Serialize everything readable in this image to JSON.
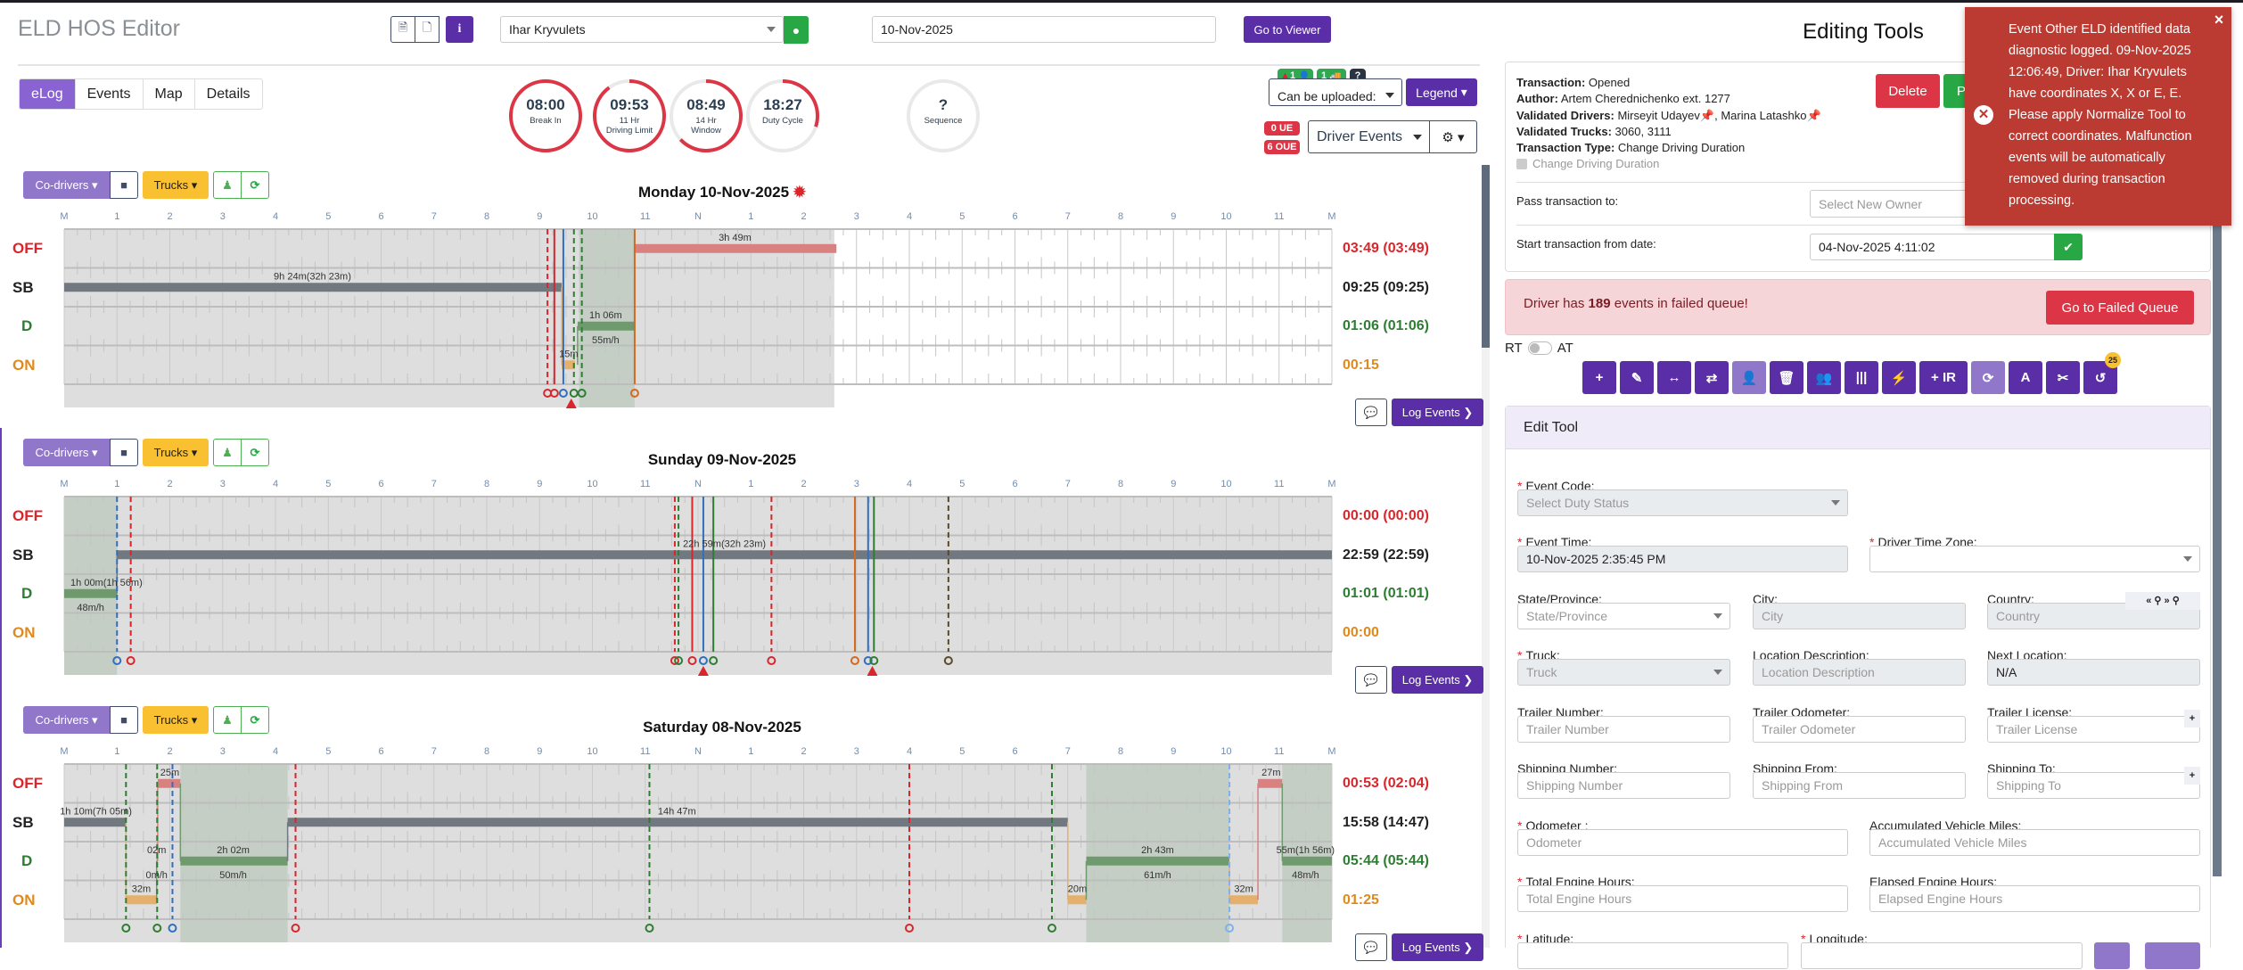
{
  "header": {
    "title": "ELD HOS Editor",
    "driver": "Ihar Kryvulets",
    "date": "10-Nov-2025",
    "go_to_viewer": "Go to Viewer",
    "info": "i"
  },
  "tabs": [
    "eLog",
    "Events",
    "Map",
    "Details"
  ],
  "gauges": [
    {
      "value": "08:00",
      "line1": "Break In",
      "line2": "",
      "pct": 1.0
    },
    {
      "value": "09:53",
      "line1": "11 Hr",
      "line2": "Driving Limit",
      "pct": 0.9
    },
    {
      "value": "08:49",
      "line1": "14 Hr",
      "line2": "Window",
      "pct": 0.63
    },
    {
      "value": "18:27",
      "line1": "Duty Cycle",
      "line2": "",
      "pct": 0.3
    },
    {
      "value": "?",
      "line1": "Sequence",
      "line2": "",
      "pct": 0
    }
  ],
  "status_badges": {
    "driver_count": "1",
    "truck_count": "1",
    "help": "?"
  },
  "upload_select": "Can be uploaded:",
  "legend": "Legend",
  "ue": "0 UE",
  "oue": "6 OUE",
  "driver_events": "Driver Events",
  "chart_common": {
    "codrivers": "Co-drivers",
    "trucks": "Trucks",
    "log_events": "Log Events",
    "rows": [
      "OFF",
      "SB",
      "D",
      "ON"
    ],
    "row_colors": [
      "#d9262b",
      "#222222",
      "#2e7d32",
      "#e08a1e"
    ],
    "bar_colors": {
      "OFF": "#d98080",
      "SB": "#717880",
      "D": "#6e9a6e",
      "ON": "#e5b06c"
    },
    "hour_labels": [
      "M",
      "1",
      "2",
      "3",
      "4",
      "5",
      "6",
      "7",
      "8",
      "9",
      "10",
      "11",
      "N",
      "1",
      "2",
      "3",
      "4",
      "5",
      "6",
      "7",
      "8",
      "9",
      "10",
      "11",
      "M"
    ]
  },
  "chart_data": [
    {
      "type": "timeline",
      "title": "Monday 10-Nov-2025",
      "totals": [
        "03:49 (03:49)",
        "09:25 (09:25)",
        "01:06 (01:06)",
        "00:15"
      ],
      "shade_until": 14.58,
      "green_regions": [
        [
          9.75,
          10.8
        ]
      ],
      "segments": [
        {
          "status": "SB",
          "start": 0,
          "end": 9.42
        },
        {
          "status": "ON",
          "start": 9.42,
          "end": 9.67
        },
        {
          "status": "D",
          "start": 9.72,
          "end": 10.8
        },
        {
          "status": "OFF",
          "start": 10.8,
          "end": 14.62
        }
      ],
      "vlines": [
        {
          "h": 9.15,
          "color": "#d9262b",
          "dash": true
        },
        {
          "h": 9.28,
          "color": "#d9262b",
          "dash": false
        },
        {
          "h": 9.45,
          "color": "#2f6fc0",
          "dash": false
        },
        {
          "h": 9.65,
          "color": "#2e7d32",
          "dash": true
        },
        {
          "h": 9.8,
          "color": "#2e7d32",
          "dash": true
        },
        {
          "h": 10.8,
          "color": "#d2691e",
          "dash": false
        }
      ],
      "warnings": [
        9.6
      ],
      "labels": [
        {
          "text": "3h 49m",
          "h": 12.7,
          "row": 0,
          "pos": "above"
        },
        {
          "text": "9h 24m(32h 23m)",
          "h": 4.7,
          "row": 1,
          "pos": "above"
        },
        {
          "text": "1h 06m",
          "h": 10.25,
          "row": 2,
          "pos": "above"
        },
        {
          "text": "55m/h",
          "h": 10.25,
          "row": 2,
          "pos": "below"
        },
        {
          "text": "15m",
          "h": 9.55,
          "row": 3,
          "pos": "above"
        }
      ]
    },
    {
      "type": "timeline",
      "title": "Sunday 09-Nov-2025",
      "totals": [
        "00:00 (00:00)",
        "22:59 (22:59)",
        "01:01 (01:01)",
        "00:00"
      ],
      "shade_until": 24,
      "green_regions": [
        [
          0,
          1.0
        ]
      ],
      "segments": [
        {
          "status": "D",
          "start": 0,
          "end": 1.0
        },
        {
          "status": "SB",
          "start": 1.0,
          "end": 24
        }
      ],
      "vlines": [
        {
          "h": 1.0,
          "color": "#2f6fc0",
          "dash": true
        },
        {
          "h": 1.26,
          "color": "#d9262b",
          "dash": true
        },
        {
          "h": 11.56,
          "color": "#d9262b",
          "dash": true
        },
        {
          "h": 11.63,
          "color": "#2e7d32",
          "dash": true
        },
        {
          "h": 11.89,
          "color": "#d9262b",
          "dash": false
        },
        {
          "h": 12.1,
          "color": "#2f6fc0",
          "dash": false
        },
        {
          "h": 12.29,
          "color": "#2e7d32",
          "dash": false
        },
        {
          "h": 13.39,
          "color": "#d9262b",
          "dash": true
        },
        {
          "h": 14.97,
          "color": "#d2691e",
          "dash": false
        },
        {
          "h": 15.22,
          "color": "#2f6fc0",
          "dash": false
        },
        {
          "h": 15.33,
          "color": "#2e7d32",
          "dash": false
        },
        {
          "h": 16.74,
          "color": "#5a4a2a",
          "dash": true
        }
      ],
      "warnings": [
        12.1,
        15.3
      ],
      "labels": [
        {
          "text": "22h 59m(32h 23m)",
          "h": 12.5,
          "row": 1,
          "pos": "above"
        },
        {
          "text": "1h 00m(1h 56m)",
          "h": 0.8,
          "row": 2,
          "pos": "above"
        },
        {
          "text": "48m/h",
          "h": 0.5,
          "row": 2,
          "pos": "below"
        }
      ]
    },
    {
      "type": "timeline",
      "title": "Saturday 08-Nov-2025",
      "totals": [
        "00:53 (02:04)",
        "15:58 (14:47)",
        "05:44 (05:44)",
        "01:25"
      ],
      "shade_until": 24,
      "green_regions": [
        [
          2.2,
          4.23
        ],
        [
          19.35,
          22.06
        ],
        [
          23.06,
          24
        ]
      ],
      "segments": [
        {
          "status": "SB",
          "start": 0,
          "end": 1.17
        },
        {
          "status": "ON",
          "start": 1.17,
          "end": 1.75
        },
        {
          "status": "D",
          "start": 1.75,
          "end": 1.77
        },
        {
          "status": "OFF",
          "start": 1.77,
          "end": 2.2
        },
        {
          "status": "D",
          "start": 2.2,
          "end": 4.23
        },
        {
          "status": "SB",
          "start": 4.23,
          "end": 19.0
        },
        {
          "status": "ON",
          "start": 19.0,
          "end": 19.35
        },
        {
          "status": "D",
          "start": 19.35,
          "end": 22.06
        },
        {
          "status": "ON",
          "start": 22.06,
          "end": 22.6
        },
        {
          "status": "OFF",
          "start": 22.6,
          "end": 23.06
        },
        {
          "status": "D",
          "start": 23.06,
          "end": 24
        }
      ],
      "vlines": [
        {
          "h": 1.17,
          "color": "#2e7d32",
          "dash": true
        },
        {
          "h": 1.76,
          "color": "#2e7d32",
          "dash": true
        },
        {
          "h": 2.05,
          "color": "#2f6fc0",
          "dash": true
        },
        {
          "h": 4.38,
          "color": "#d9262b",
          "dash": true
        },
        {
          "h": 11.08,
          "color": "#2e7d32",
          "dash": true
        },
        {
          "h": 16.0,
          "color": "#d9262b",
          "dash": true
        },
        {
          "h": 18.7,
          "color": "#2e7d32",
          "dash": true
        },
        {
          "h": 22.06,
          "color": "#7fb0ee",
          "dash": true
        }
      ],
      "warnings": [],
      "labels": [
        {
          "text": "25m",
          "h": 2.0,
          "row": 0,
          "pos": "above"
        },
        {
          "text": "27m",
          "h": 22.85,
          "row": 0,
          "pos": "above"
        },
        {
          "text": "1h 10m(7h 05m)",
          "h": 0.6,
          "row": 1,
          "pos": "above"
        },
        {
          "text": "14h 47m",
          "h": 11.6,
          "row": 1,
          "pos": "above"
        },
        {
          "text": "02m",
          "h": 1.75,
          "row": 2,
          "pos": "above"
        },
        {
          "text": "0m/h",
          "h": 1.75,
          "row": 2,
          "pos": "below"
        },
        {
          "text": "2h 02m",
          "h": 3.2,
          "row": 2,
          "pos": "above"
        },
        {
          "text": "50m/h",
          "h": 3.2,
          "row": 2,
          "pos": "below"
        },
        {
          "text": "2h 43m",
          "h": 20.7,
          "row": 2,
          "pos": "above"
        },
        {
          "text": "61m/h",
          "h": 20.7,
          "row": 2,
          "pos": "below"
        },
        {
          "text": "55m(1h 56m)",
          "h": 23.5,
          "row": 2,
          "pos": "above"
        },
        {
          "text": "48m/h",
          "h": 23.5,
          "row": 2,
          "pos": "below"
        },
        {
          "text": "32m",
          "h": 1.46,
          "row": 3,
          "pos": "above"
        },
        {
          "text": "20m",
          "h": 19.18,
          "row": 3,
          "pos": "above"
        },
        {
          "text": "32m",
          "h": 22.33,
          "row": 3,
          "pos": "above"
        }
      ]
    }
  ],
  "right": {
    "title": "Editing Tools",
    "transaction": {
      "label": "Transaction:",
      "value": " Opened"
    },
    "author": {
      "label": "Author:",
      "value": " Artem Cherednichenko ext. 1277"
    },
    "validated_drivers": {
      "label": "Validated Drivers:",
      "d1": " Mirseyit Udayev",
      "d2": ", Marina Latashko"
    },
    "validated_trucks": {
      "label": "Validated Trucks:",
      "value": " 3060, 3111"
    },
    "transaction_type": {
      "label": "Transaction Type:",
      "value": " Change Driving Duration"
    },
    "checkbox_label": "Change Driving Duration",
    "delete": "Delete",
    "process": "P",
    "pass_label": "Pass transaction to:",
    "pass_placeholder": "Select New Owner",
    "start_label": "Start transaction from date:",
    "start_value": "04-Nov-2025 4:11:02",
    "failed_pre": "Driver has ",
    "failed_count": "189",
    "failed_post": " events in failed queue!",
    "failed_button": "Go to Failed Queue",
    "rt": "RT",
    "at": "AT",
    "tools": [
      "+",
      "✎",
      "↔",
      "⇄",
      "👤",
      "🗑",
      "👥",
      "|||",
      "⚡",
      "+ IR",
      "⟳",
      "A",
      "✂",
      "↺"
    ],
    "tool_names": [
      "add",
      "edit",
      "shift",
      "swap",
      "driver",
      "delete",
      "co-drivers",
      "split",
      "magic",
      "add-ir",
      "refresh",
      "text",
      "cut",
      "undo"
    ],
    "undo_badge": "25"
  },
  "edit_tool": {
    "title": "Edit Tool",
    "event_code": {
      "label": "Event Code:",
      "placeholder": "Select Duty Status"
    },
    "event_time": {
      "label": "Event Time:",
      "value": "10-Nov-2025 2:35:45 PM"
    },
    "driver_tz": {
      "label": "Driver Time Zone:"
    },
    "state": {
      "label": "State/Province:",
      "placeholder": "State/Province"
    },
    "city": {
      "label": "City:",
      "placeholder": "City"
    },
    "country": {
      "label": "Country:",
      "placeholder": "Country"
    },
    "truck": {
      "label": "Truck:",
      "placeholder": "Truck"
    },
    "location_desc": {
      "label": "Location Description:",
      "placeholder": "Location Description"
    },
    "next_location": {
      "label": "Next Location:",
      "value": "N/A"
    },
    "trailer_number": {
      "label": "Trailer Number:",
      "placeholder": "Trailer Number"
    },
    "trailer_odometer": {
      "label": "Trailer Odometer:",
      "placeholder": "Trailer Odometer"
    },
    "trailer_license": {
      "label": "Trailer License:",
      "placeholder": "Trailer License"
    },
    "shipping_number": {
      "label": "Shipping Number:",
      "placeholder": "Shipping Number"
    },
    "shipping_from": {
      "label": "Shipping From:",
      "placeholder": "Shipping From"
    },
    "shipping_to": {
      "label": "Shipping To:",
      "placeholder": "Shipping To"
    },
    "odometer": {
      "label": "Odometer :",
      "placeholder": "Odometer"
    },
    "acc_miles": {
      "label": "Accumulated Vehicle Miles:",
      "placeholder": "Accumulated Vehicle Miles"
    },
    "total_engine": {
      "label": "Total Engine Hours:",
      "placeholder": "Total Engine Hours"
    },
    "elapsed_engine": {
      "label": "Elapsed Engine Hours:",
      "placeholder": "Elapsed Engine Hours"
    },
    "latitude": {
      "label": "Latitude:"
    },
    "longitude": {
      "label": "Longitude:"
    },
    "required_mark": "*"
  },
  "toast": {
    "message": "Event Other ELD identified data diagnostic logged. 09-Nov-2025 12:06:49, Driver: Ihar Kryvulets have coordinates X, X or E, E. Please apply Normalize Tool to correct coordinates. Malfunction events will be automatically removed during transaction processing.",
    "close": "×"
  },
  "colors": {
    "accent": "#5a2ea6",
    "danger": "#dc3545",
    "success": "#28a745",
    "warning": "#f9c032"
  }
}
